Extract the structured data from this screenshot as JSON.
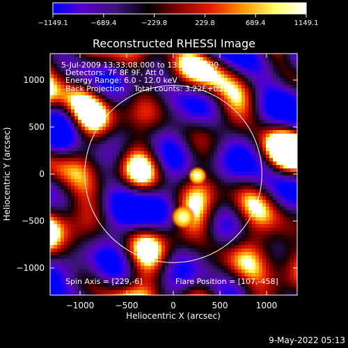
{
  "chart_data": {
    "type": "heatmap",
    "title": "Reconstructed RHESSI Image",
    "xlabel": "Heliocentric X (arcsec)",
    "ylabel": "Heliocentric Y (arcsec)",
    "xlim": [
      -1300,
      1300
    ],
    "ylim": [
      -1300,
      1300
    ],
    "x_ticks": [
      -1000,
      -500,
      0,
      500,
      1000
    ],
    "x_tick_labels": [
      "−1000",
      "−500",
      "0",
      "500",
      "1000"
    ],
    "y_ticks": [
      -1000,
      -500,
      0,
      500,
      1000
    ],
    "y_tick_labels": [
      "−1000",
      "−500",
      "0",
      "500",
      "1000"
    ],
    "colorbar": {
      "range": [
        -1149.1,
        1149.1
      ],
      "ticks": [
        -1149.1,
        -689.4,
        -229.8,
        229.8,
        689.4,
        1149.1
      ],
      "tick_labels": [
        "−1149.1",
        "−689.4",
        "−229.8",
        "229.8",
        "689.4",
        "1149.1"
      ],
      "colors": [
        "#0000ff",
        "#5a00c8",
        "#3c1478",
        "#000000",
        "#8c0000",
        "#e61e00",
        "#ff9600",
        "#ffff64",
        "#ffffff"
      ]
    },
    "solar_limb": {
      "center": [
        0,
        0
      ],
      "radius": 946
    },
    "crosshair": [
      229,
      -6
    ],
    "sources": [
      {
        "x": 107,
        "y": -458,
        "intensity": 1149.1
      },
      {
        "x": 260,
        "y": -20,
        "intensity": 760
      }
    ],
    "info_lines": [
      "5-Jul-2009 13:33:08.000 to 13:34:38.000",
      "Detectors: 7F 8F 9F, Att 0",
      "Energy Range: 6.0 - 12.0 keV",
      "Back Projection    Total counts: 3.22E+03"
    ],
    "spin_axis": "Spin Axis = [229,-6]",
    "flare_position": "Flare Position = [107,-458]",
    "footer_date": "9-May-2022 05:13"
  }
}
